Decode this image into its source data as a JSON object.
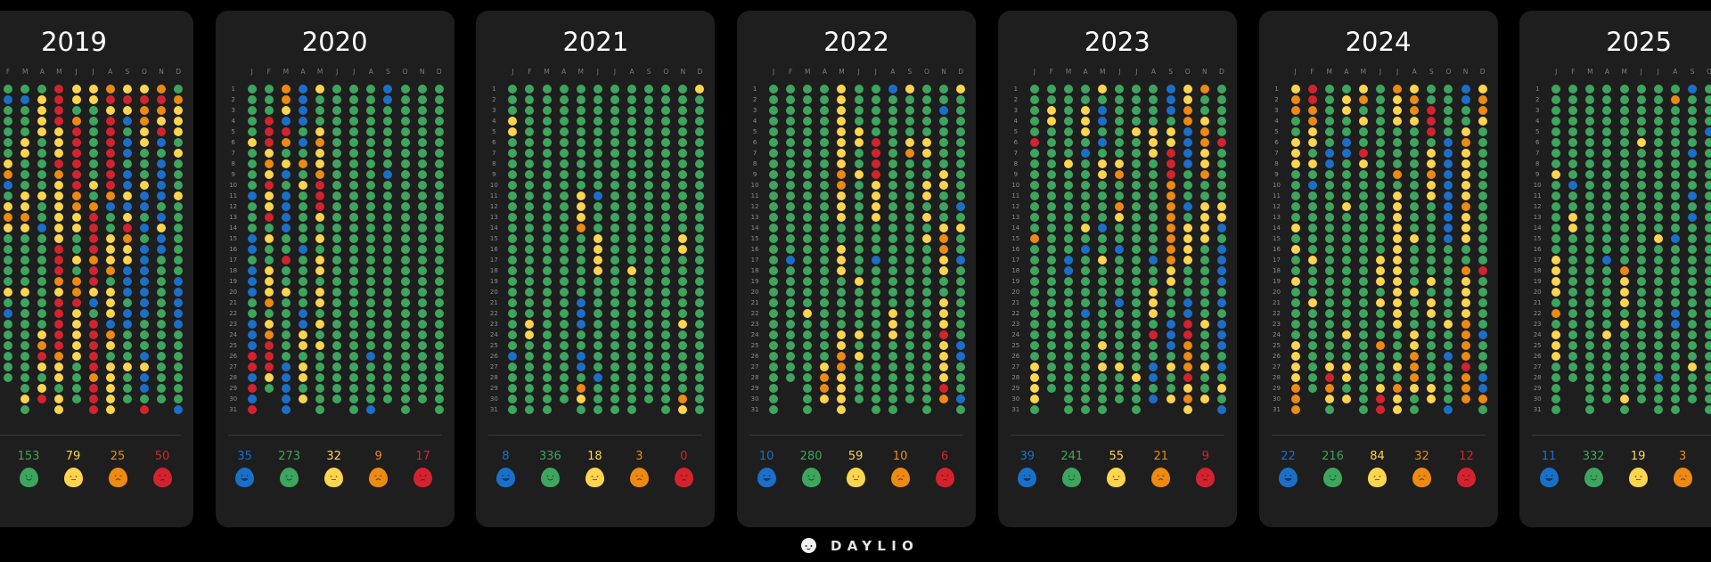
{
  "mood_colors": {
    "b": "#1a6fc9",
    "g": "#3da55d",
    "y": "#fdd54e",
    "o": "#ec8a12",
    "r": "#d2232f"
  },
  "mood_order": [
    "b",
    "g",
    "y",
    "o",
    "r"
  ],
  "month_letters": [
    "J",
    "F",
    "M",
    "A",
    "M",
    "J",
    "J",
    "A",
    "S",
    "O",
    "N",
    "D"
  ],
  "day_numbers": [
    "1",
    "2",
    "3",
    "4",
    "5",
    "6",
    "7",
    "8",
    "9",
    "10",
    "11",
    "12",
    "13",
    "14",
    "15",
    "16",
    "17",
    "18",
    "19",
    "20",
    "21",
    "22",
    "23",
    "24",
    "25",
    "26",
    "27",
    "28",
    "29",
    "30",
    "31"
  ],
  "years": [
    {
      "year": "2019",
      "stats": [
        null,
        "153",
        "79",
        "25",
        "50"
      ],
      "months": [
        null,
        "gbgggggyobgyoygggggygbgggggg",
        "gbgggyygggyyoygggggygggggggggyg",
        "gyyyygggggyggbgggggggggyorygyr",
        "rrrryyyroyyyyyyrrroyrrrrroyygyy",
        "yygorrrrrrooyyggygooryyyyygggg",
        "yygggggggygorrrrorrybgrrrrrorrr",
        "oryrrrrrrrobggyyyogyyyboygyyyyy",
        "yrybgbbgbbybyroyybbbgbbgggyggg",
        "yrooyygggybbgbgbbbbbbbgggbybbgr",
        "oroyrbgbbbbgbybbgggggggggggggg",
        "goyyygygggygggggggbbbbbgggggggb"
      ]
    },
    {
      "year": "2020",
      "stats": [
        "35",
        "273",
        "32",
        "9",
        "17"
      ],
      "months": [
        "gggggyggggbgggbbgbbbggbbbrrbrbr",
        "gggrrryoyryyrgyggyyyogyorrryg",
        "ooybrogybgbbbbggrggyggggggbbbbb",
        "bbbbgbgogygggggbgggggbbyygyygy",
        "ygggyoyyorrrygygyygyygygygggggg",
        "gggggggggggggggggggggggggggggg",
        "ggggggggggggggggggggggggggggggg",
        "gggggggggggggggggggggggggbggggb",
        "bbggggggbggggggggggggggggggggg",
        "ggggggggggggggggggggggggggggggg",
        "gggggggggggggggggggggggggggggg",
        "ggggggggggggggggggggggggggggggg"
      ]
    },
    {
      "year": "2021",
      "stats": [
        "8",
        "336",
        "18",
        "3",
        "0"
      ],
      "months": [
        "gggyyggggggggggggggggggggbgggggg",
        "ggggggggggggggggggggggyyggggggg",
        "ggggggggggggggggggggggggggggggg",
        "gggggggggggggggggggggggggggggg",
        "ggggggggggyyyoggggggbbbggbbgoyg",
        "ggggggggggbgggyyyygggggggggbggg",
        "ggggggggggggggggggggggggggggggg",
        "gggggggggggggggggyggggggggggggg",
        "gggggggggggggggggggggggggggggg",
        "ggggggggggggggggggggggggggggggg",
        "ggggggggggggggyyggggggyggggggoy",
        "yggggggggggggggggggggggggggggggg"
      ]
    },
    {
      "year": "2022",
      "stats": [
        "10",
        "280",
        "59",
        "10",
        "6"
      ],
      "months": [
        "ggggggggggggggggggggggggggggggg",
        "ggggggggggggggggbggggggggggg",
        "gggggggggggggggggggggygggggggggg",
        "ggggggggggggggggggggggggggyooy",
        "yyyyyyyyooyyyggyyygggggyyooyyyyy",
        "ggggyyggygggggggggyggggygygggg",
        "gggggrrrryyyygggbgggggggggggggg",
        "bggggggggggggggggggggyyygggggggg",
        "yggggyoggggggggggggggggggggggg",
        "gggggyyggyygygyggggggggggggggggg",
        "ggbgggggyygggyooyyggyyyryyyyro",
        "yggggggggggbgyggbgggggggbbgggbgb"
      ]
    },
    {
      "year": "2023",
      "stats": [
        "39",
        "241",
        "55",
        "21",
        "9"
      ],
      "months": [
        "gggggrggggggggogggggggggggyyyygg",
        "ggyyggggggggggggggggggggggggg",
        "gggggggyggggggggbbggggggggggggg",
        "ggyyygbggggggygbgggggbggggggggg",
        "ygbbgbgyyggggbggygggggggygyggggg",
        "gggggggyoggoyggbggggbgggggyggg",
        "ggggyggggggggggggggggggggggyggggg",
        "ggggyyygggggggggbggyyygrggbbgb",
        "bbbgyyrrrooooooooyygggbbbgyggy",
        "yyoobbbbgggbgyyyygggbbrroooryoy",
        "oggyooyyoggyyyygggggggygggyggy",
        "gggggrgggggyybgbbbbgbgbbbgbgygb"
      ]
    },
    {
      "year": "2024",
      "stats": [
        "22",
        "216",
        "84",
        "32",
        "12"
      ],
      "months": [
        "yooggyyygggggygyggygggggyyyyooor",
        "rrooyygygbggggggygggygggggggg",
        "ggggggbbggggggggggggggggggyroyggg",
        "gyyggbbggggygggggggggggyggyygy",
        "yogyggryggggggggggggggggggggggg",
        "ggggggggggggggggyyygygggogggyrr",
        "oyyyggggogyyyyyyyyyyyyygggygoyy",
        "yooyggggggggggyggggygggyyoooygg",
        "ggrrrgyyoyygggggggygyyggggggyy",
        "gggggbbbbbbbbbbgggggggyggbggggb",
        "bbggyoyyyyyoyyyggoyyyyoooorooo",
        "yooygggggggggggggrgggggbgggbbog"
      ]
    },
    {
      "year": "2025",
      "stats": [
        "11",
        "332",
        "19",
        "3",
        null
      ],
      "months": [
        "ggggggggygggggggyyyygogyyyggggg",
        "gggggggggbggyygggggggggggggg",
        "ggggggggggggggggggggggggggggggg",
        "ggggggggggggggggbggggggygggggg",
        "gggggggggggggggggoyyygyggggggyg",
        "gggggygggggggggggggggggggggggg",
        "ggggggggggggggyggggggggggggbgggg",
        "goggggggggggggbggggggbbgggggggg",
        "bgggggbgggbgbgggggggggggggyggg",
        "ggggbgggggggggggggggggggggggggg",
        null,
        null
      ]
    }
  ],
  "logo": {
    "text": "DAYLIO"
  }
}
